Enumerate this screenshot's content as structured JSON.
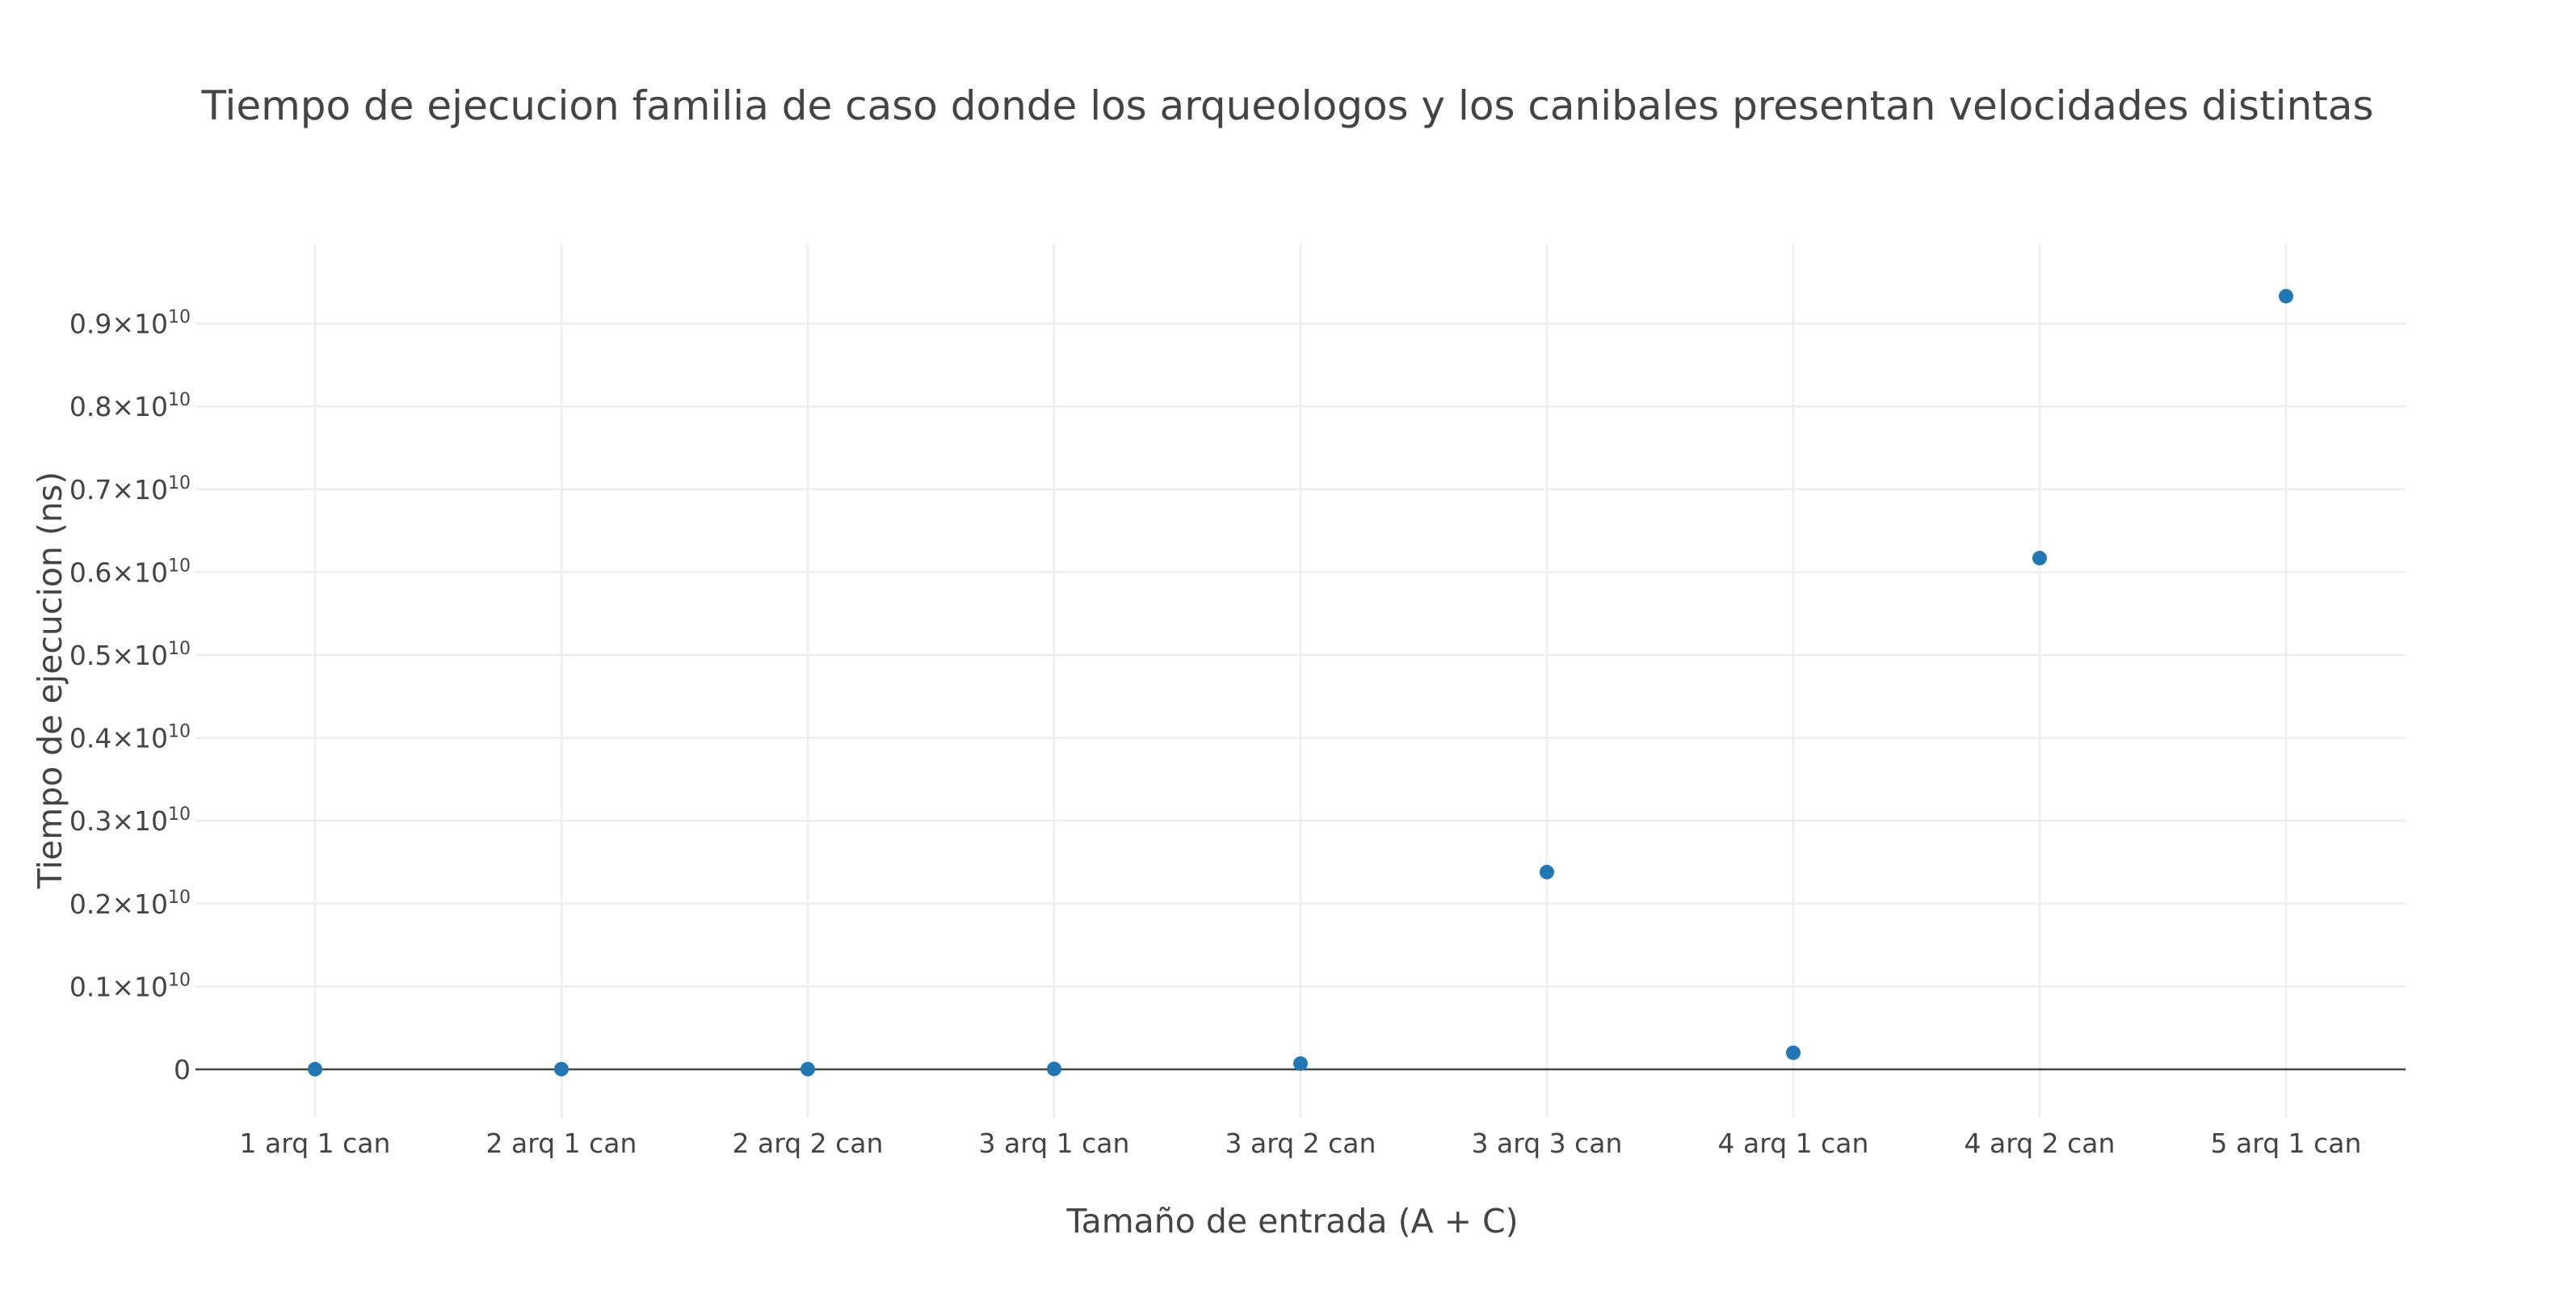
{
  "chart_data": {
    "type": "scatter",
    "title": "Tiempo de ejecucion familia de caso donde los arqueologos y los canibales presentan velocidades distintas",
    "xlabel": "Tamaño de entrada (A + C)",
    "ylabel": "Tiempo de ejecucion (ns)",
    "categories": [
      "1 arq 1 can",
      "2 arq 1 can",
      "2 arq 2 can",
      "3 arq 1 can",
      "3 arq 2 can",
      "3 arq 3 can",
      "4 arq 1 can",
      "4 arq 2 can",
      "5 arq 1 can"
    ],
    "values": [
      2000000,
      3000000,
      3000000,
      5000000,
      70000000,
      2380000000,
      200000000,
      6170000000,
      9330000000
    ],
    "ylim": [
      -600000000,
      10000000000
    ],
    "y_ticks": [
      {
        "value": 0,
        "mantissa": "0",
        "exponent": ""
      },
      {
        "value": 1000000000,
        "mantissa": "0.1×10",
        "exponent": "10"
      },
      {
        "value": 2000000000,
        "mantissa": "0.2×10",
        "exponent": "10"
      },
      {
        "value": 3000000000,
        "mantissa": "0.3×10",
        "exponent": "10"
      },
      {
        "value": 4000000000,
        "mantissa": "0.4×10",
        "exponent": "10"
      },
      {
        "value": 5000000000,
        "mantissa": "0.5×10",
        "exponent": "10"
      },
      {
        "value": 6000000000,
        "mantissa": "0.6×10",
        "exponent": "10"
      },
      {
        "value": 7000000000,
        "mantissa": "0.7×10",
        "exponent": "10"
      },
      {
        "value": 8000000000,
        "mantissa": "0.8×10",
        "exponent": "10"
      },
      {
        "value": 9000000000,
        "mantissa": "0.9×10",
        "exponent": "10"
      }
    ],
    "grid": true,
    "legend": "none",
    "marker_color": "#1f77b4",
    "grid_color": "#eeeeee",
    "zeroline_color": "#444444"
  }
}
